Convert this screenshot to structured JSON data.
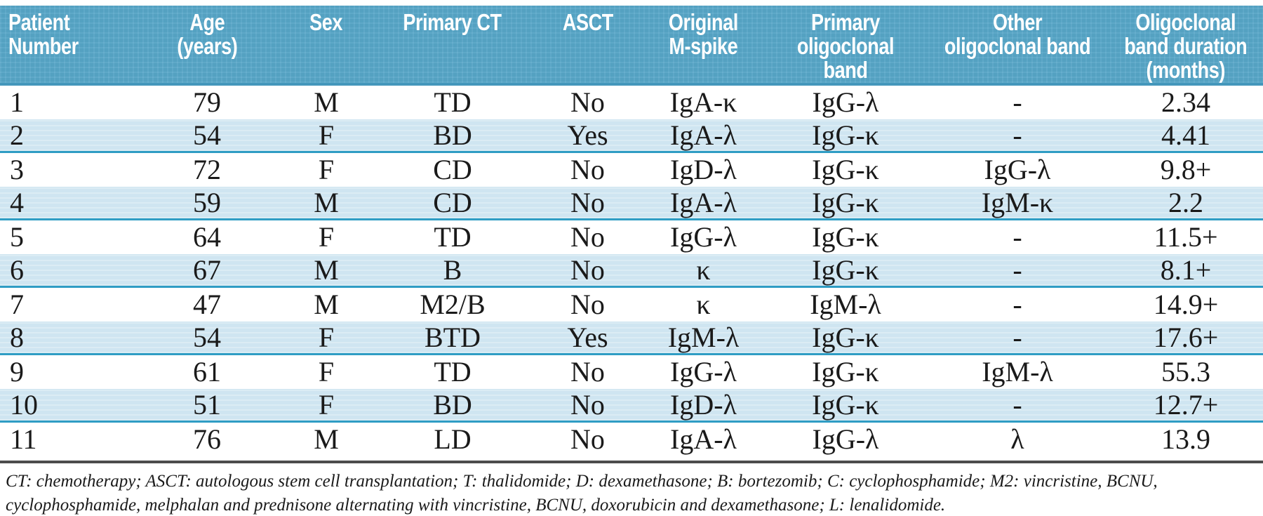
{
  "colors": {
    "header_bg": "#57a7c9",
    "header_edge": "#4497bb",
    "header_text": "#ffffff",
    "row_shaded": "#cfe5f1",
    "shaded_border": "#2f9dc4",
    "divider": "#4c4c4c",
    "body_text": "#1a1a1a"
  },
  "table": {
    "columns": [
      {
        "key": "patient_number",
        "label": "Patient\nNumber"
      },
      {
        "key": "age",
        "label": "Age\n(years)"
      },
      {
        "key": "sex",
        "label": "Sex"
      },
      {
        "key": "primary_ct",
        "label": "Primary CT"
      },
      {
        "key": "asct",
        "label": "ASCT"
      },
      {
        "key": "original_m_spike",
        "label": "Original\nM-spike"
      },
      {
        "key": "primary_oligoclonal_band",
        "label": "Primary\noligoclonal band"
      },
      {
        "key": "other_oligoclonal_band",
        "label": "Other\noligoclonal band"
      },
      {
        "key": "duration",
        "label": "Oligoclonal\nband duration\n(months)"
      }
    ],
    "rows": [
      {
        "patient_number": "1",
        "age": "79",
        "sex": "M",
        "primary_ct": "TD",
        "asct": "No",
        "original_m_spike": "IgA-κ",
        "primary_oligoclonal_band": "IgG-λ",
        "other_oligoclonal_band": "-",
        "duration": "2.34"
      },
      {
        "patient_number": "2",
        "age": "54",
        "sex": "F",
        "primary_ct": "BD",
        "asct": "Yes",
        "original_m_spike": "IgA-λ",
        "primary_oligoclonal_band": "IgG-κ",
        "other_oligoclonal_band": "-",
        "duration": "4.41"
      },
      {
        "patient_number": "3",
        "age": "72",
        "sex": "F",
        "primary_ct": "CD",
        "asct": "No",
        "original_m_spike": "IgD-λ",
        "primary_oligoclonal_band": "IgG-κ",
        "other_oligoclonal_band": "IgG-λ",
        "duration": "9.8+"
      },
      {
        "patient_number": "4",
        "age": "59",
        "sex": "M",
        "primary_ct": "CD",
        "asct": "No",
        "original_m_spike": "IgA-λ",
        "primary_oligoclonal_band": "IgG-κ",
        "other_oligoclonal_band": "IgM-κ",
        "duration": "2.2"
      },
      {
        "patient_number": "5",
        "age": "64",
        "sex": "F",
        "primary_ct": "TD",
        "asct": "No",
        "original_m_spike": "IgG-λ",
        "primary_oligoclonal_band": "IgG-κ",
        "other_oligoclonal_band": "-",
        "duration": "11.5+"
      },
      {
        "patient_number": "6",
        "age": "67",
        "sex": "M",
        "primary_ct": "B",
        "asct": "No",
        "original_m_spike": "κ",
        "primary_oligoclonal_band": "IgG-κ",
        "other_oligoclonal_band": "-",
        "duration": "8.1+"
      },
      {
        "patient_number": "7",
        "age": "47",
        "sex": "M",
        "primary_ct": "M2/B",
        "asct": "No",
        "original_m_spike": "κ",
        "primary_oligoclonal_band": "IgM-λ",
        "other_oligoclonal_band": "-",
        "duration": "14.9+"
      },
      {
        "patient_number": "8",
        "age": "54",
        "sex": "F",
        "primary_ct": "BTD",
        "asct": "Yes",
        "original_m_spike": "IgM-λ",
        "primary_oligoclonal_band": "IgG-κ",
        "other_oligoclonal_band": "-",
        "duration": "17.6+"
      },
      {
        "patient_number": "9",
        "age": "61",
        "sex": "F",
        "primary_ct": "TD",
        "asct": "No",
        "original_m_spike": "IgG-λ",
        "primary_oligoclonal_band": "IgG-κ",
        "other_oligoclonal_band": "IgM-λ",
        "duration": "55.3"
      },
      {
        "patient_number": "10",
        "age": "51",
        "sex": "F",
        "primary_ct": "BD",
        "asct": "No",
        "original_m_spike": "IgD-λ",
        "primary_oligoclonal_band": "IgG-κ",
        "other_oligoclonal_band": "-",
        "duration": "12.7+"
      },
      {
        "patient_number": "11",
        "age": "76",
        "sex": "M",
        "primary_ct": "LD",
        "asct": "No",
        "original_m_spike": "IgA-λ",
        "primary_oligoclonal_band": "IgG-λ",
        "other_oligoclonal_band": "λ",
        "duration": "13.9"
      }
    ],
    "footnote": "CT: chemotherapy; ASCT: autologous stem cell transplantation; T: thalidomide; D: dexamethasone; B: bortezomib; C: cyclophosphamide; M2: vincristine, BCNU, cyclophosphamide, melphalan and prednisone alternating with vincristine, BCNU, doxorubicin and dexamethasone; L: lenalidomide."
  }
}
